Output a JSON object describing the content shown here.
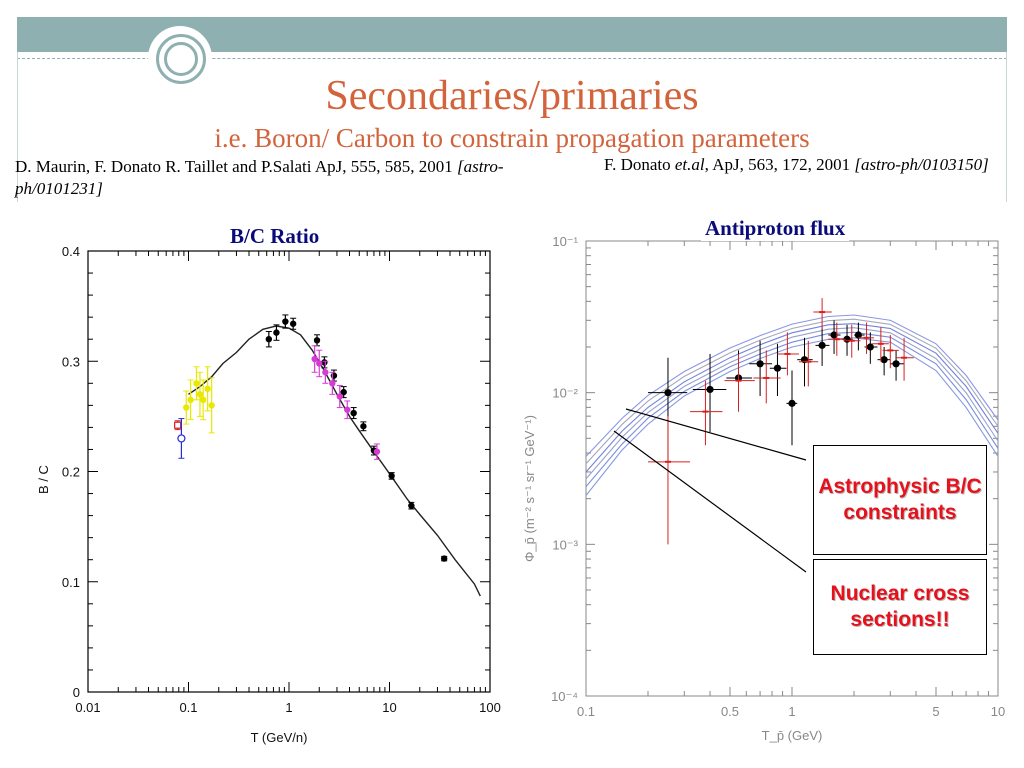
{
  "slide": {
    "title": "Secondaries/primaries",
    "subtitle": "i.e. Boron/ Carbon to constrain propagation parameters"
  },
  "refs": {
    "left_main": "D. Maurin, F. Donato R. Taillet and P.Salati ApJ, 555, 585, 2001 ",
    "left_italic": "[astro-ph/0101231]",
    "right_main1": "F. Donato ",
    "right_italic1": "et.al",
    "right_main2": ", ApJ, 563, 172, 2001 ",
    "right_italic2": "[astro-ph/0103150]"
  },
  "labels": {
    "bc_ratio": "B/C Ratio",
    "antiproton": "Antiproton flux"
  },
  "callouts": {
    "astro": "Astrophysic B/C constraints",
    "nuclear": "Nuclear cross sections!!"
  },
  "colors": {
    "accent": "#d2633b",
    "band": "#8fb0b0",
    "label": "#0a0a7a",
    "callout": "#e8111b"
  },
  "chart_data": [
    {
      "type": "scatter",
      "title": "B/C Ratio",
      "xlabel": "T   (GeV/n)",
      "ylabel": "B / C",
      "xscale": "log",
      "xlim": [
        0.01,
        100
      ],
      "ylim": [
        0,
        0.4
      ],
      "x_ticks": [
        0.01,
        0.1,
        1,
        10,
        100
      ],
      "x_tick_labels": [
        "0.01",
        "0.1",
        "1",
        "10",
        "100"
      ],
      "y_ticks": [
        0,
        0.1,
        0.2,
        0.3,
        0.4
      ],
      "y_tick_labels": [
        "0",
        "0.1",
        "0.2",
        "0.3",
        "0.4"
      ],
      "model_curve": {
        "x": [
          0.1,
          0.13,
          0.17,
          0.22,
          0.3,
          0.4,
          0.55,
          0.75,
          1.0,
          1.3,
          1.7,
          2.2,
          3,
          4,
          5,
          7,
          10,
          15,
          20,
          30,
          45,
          70,
          80
        ],
        "y": [
          0.27,
          0.277,
          0.286,
          0.298,
          0.308,
          0.32,
          0.329,
          0.332,
          0.33,
          0.324,
          0.31,
          0.293,
          0.27,
          0.25,
          0.237,
          0.218,
          0.198,
          0.175,
          0.161,
          0.142,
          0.12,
          0.098,
          0.087
        ]
      },
      "series": [
        {
          "name": "black",
          "color": "#000000",
          "marker": "filled-circle",
          "x": [
            0.63,
            0.75,
            0.92,
            1.1,
            1.9,
            2.25,
            2.8,
            3.5,
            4.4,
            5.5,
            7.0,
            10.5,
            16.5,
            35
          ],
          "y": [
            0.32,
            0.326,
            0.336,
            0.334,
            0.319,
            0.299,
            0.287,
            0.272,
            0.253,
            0.241,
            0.219,
            0.196,
            0.169,
            0.121
          ],
          "err": [
            0.007,
            0.007,
            0.006,
            0.005,
            0.005,
            0.005,
            0.005,
            0.005,
            0.005,
            0.004,
            0.004,
            0.003,
            0.003,
            0.002
          ]
        },
        {
          "name": "yellow",
          "color": "#e8e800",
          "marker": "filled-circle",
          "x": [
            0.095,
            0.105,
            0.12,
            0.13,
            0.14,
            0.155,
            0.17
          ],
          "y": [
            0.258,
            0.265,
            0.28,
            0.27,
            0.265,
            0.275,
            0.26
          ],
          "err": [
            0.015,
            0.018,
            0.015,
            0.02,
            0.018,
            0.02,
            0.025
          ]
        },
        {
          "name": "magenta",
          "color": "#d63bd6",
          "marker": "filled-circle",
          "x": [
            1.8,
            2.0,
            2.3,
            2.7,
            3.2,
            3.8,
            7.5
          ],
          "y": [
            0.302,
            0.298,
            0.29,
            0.28,
            0.268,
            0.256,
            0.218
          ],
          "err": [
            0.012,
            0.012,
            0.01,
            0.01,
            0.01,
            0.008,
            0.007
          ]
        },
        {
          "name": "red",
          "color": "#d62020",
          "marker": "open-square",
          "x": [
            0.078
          ],
          "y": [
            0.242
          ],
          "err": [
            0.004
          ]
        },
        {
          "name": "blue",
          "color": "#2a2ad6",
          "marker": "open-circle",
          "x": [
            0.085
          ],
          "y": [
            0.23
          ],
          "err": [
            0.018
          ]
        }
      ]
    },
    {
      "type": "scatter",
      "title": "Antiproton flux",
      "xlabel": "T_p̄   (GeV)",
      "ylabel": "Φ_p̄  (m⁻² s⁻¹ sr⁻¹ GeV⁻¹)",
      "xscale": "log",
      "yscale": "log",
      "xlim": [
        0.1,
        10
      ],
      "ylim": [
        0.0001,
        0.1
      ],
      "x_ticks": [
        0.1,
        0.5,
        1,
        5,
        10
      ],
      "x_tick_labels": [
        "0.1",
        "0.5",
        "1",
        "5",
        "10"
      ],
      "y_ticks": [
        0.0001,
        0.001,
        0.01,
        0.1
      ],
      "y_tick_labels": [
        "10⁻⁴",
        "10⁻³",
        "10⁻²",
        "10⁻¹"
      ],
      "model_band": {
        "x": [
          0.1,
          0.15,
          0.2,
          0.3,
          0.5,
          0.7,
          1.0,
          1.5,
          2.0,
          3.0,
          5.0,
          7.0,
          10.0
        ],
        "curves": [
          [
            0.0021,
            0.0042,
            0.0062,
            0.0095,
            0.0138,
            0.0168,
            0.02,
            0.0225,
            0.023,
            0.0215,
            0.014,
            0.008,
            0.0038
          ],
          [
            0.0024,
            0.0046,
            0.0068,
            0.0102,
            0.0148,
            0.018,
            0.0215,
            0.0245,
            0.025,
            0.0232,
            0.0155,
            0.009,
            0.0043
          ],
          [
            0.0027,
            0.0051,
            0.0074,
            0.011,
            0.0158,
            0.0193,
            0.0232,
            0.0262,
            0.0268,
            0.0248,
            0.0168,
            0.01,
            0.0048
          ],
          [
            0.003,
            0.0056,
            0.008,
            0.0118,
            0.017,
            0.0207,
            0.0248,
            0.028,
            0.0285,
            0.0265,
            0.0182,
            0.011,
            0.0054
          ],
          [
            0.0034,
            0.0062,
            0.0088,
            0.0128,
            0.0183,
            0.0222,
            0.0265,
            0.0298,
            0.0305,
            0.0282,
            0.0196,
            0.012,
            0.006
          ],
          [
            0.0038,
            0.0068,
            0.0096,
            0.0138,
            0.0197,
            0.0238,
            0.0283,
            0.0318,
            0.0325,
            0.03,
            0.021,
            0.013,
            0.0066
          ]
        ]
      },
      "series": [
        {
          "name": "black",
          "color": "#000000",
          "marker": "filled-circle",
          "x": [
            0.25,
            0.4,
            0.55,
            0.7,
            0.85,
            1.0,
            1.15,
            1.4,
            1.6,
            1.85,
            2.1,
            2.4,
            2.8,
            3.2
          ],
          "y": [
            0.01,
            0.0105,
            0.0125,
            0.0155,
            0.0145,
            0.0085,
            0.0165,
            0.0205,
            0.024,
            0.0225,
            0.024,
            0.02,
            0.0165,
            0.0155
          ],
          "y_lo": [
            0.0035,
            0.0055,
            0.0075,
            0.0095,
            0.0095,
            0.0045,
            0.011,
            0.015,
            0.018,
            0.0175,
            0.019,
            0.0155,
            0.013,
            0.012
          ],
          "y_hi": [
            0.017,
            0.018,
            0.019,
            0.022,
            0.021,
            0.014,
            0.023,
            0.027,
            0.03,
            0.028,
            0.029,
            0.025,
            0.02,
            0.019
          ],
          "x_lo": [
            0.2,
            0.33,
            0.48,
            0.62,
            0.78,
            0.94,
            1.06,
            1.3,
            1.5,
            1.75,
            2.0,
            2.25,
            2.6,
            3.0
          ],
          "x_hi": [
            0.31,
            0.48,
            0.64,
            0.8,
            0.94,
            1.06,
            1.26,
            1.52,
            1.72,
            1.97,
            2.25,
            2.6,
            3.0,
            3.5
          ]
        },
        {
          "name": "red",
          "color": "#d62020",
          "marker": "dash",
          "x": [
            0.25,
            0.38,
            0.55,
            0.75,
            0.95,
            1.2,
            1.4,
            1.65,
            1.95,
            2.3,
            2.7,
            3.0,
            3.5
          ],
          "y": [
            0.0035,
            0.0075,
            0.012,
            0.0125,
            0.018,
            0.016,
            0.034,
            0.0225,
            0.022,
            0.023,
            0.021,
            0.019,
            0.017
          ],
          "y_lo": [
            0.001,
            0.0045,
            0.0075,
            0.0085,
            0.013,
            0.011,
            0.026,
            0.0175,
            0.017,
            0.018,
            0.016,
            0.0145,
            0.012
          ],
          "y_hi": [
            0.007,
            0.012,
            0.018,
            0.019,
            0.025,
            0.022,
            0.042,
            0.029,
            0.028,
            0.029,
            0.027,
            0.024,
            0.023
          ],
          "x_lo": [
            0.2,
            0.32,
            0.47,
            0.65,
            0.85,
            1.08,
            1.27,
            1.5,
            1.78,
            2.1,
            2.45,
            2.75,
            3.2
          ],
          "x_hi": [
            0.32,
            0.46,
            0.66,
            0.88,
            1.08,
            1.34,
            1.56,
            1.82,
            2.15,
            2.5,
            2.95,
            3.3,
            3.9
          ]
        }
      ]
    }
  ]
}
